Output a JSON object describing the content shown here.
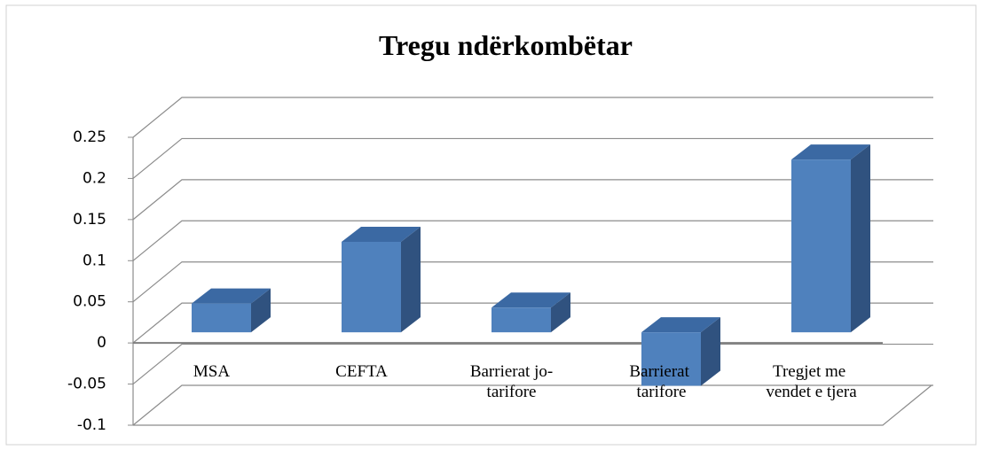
{
  "chart_data": {
    "type": "bar3d",
    "title": "Tregu ndërkombëtar",
    "categories": [
      "MSA",
      "CEFTA",
      "Barrierat jo-tarifore",
      "Barrierat tarifore",
      "Tregjet me vendet e tjera"
    ],
    "values": [
      0.035,
      0.11,
      0.03,
      -0.065,
      0.21
    ],
    "color": "#4f81bd",
    "ylim": [
      -0.1,
      0.25
    ],
    "yticks": [
      -0.1,
      -0.05,
      0,
      0.05,
      0.1,
      0.15,
      0.2,
      0.25
    ],
    "grid": true
  }
}
